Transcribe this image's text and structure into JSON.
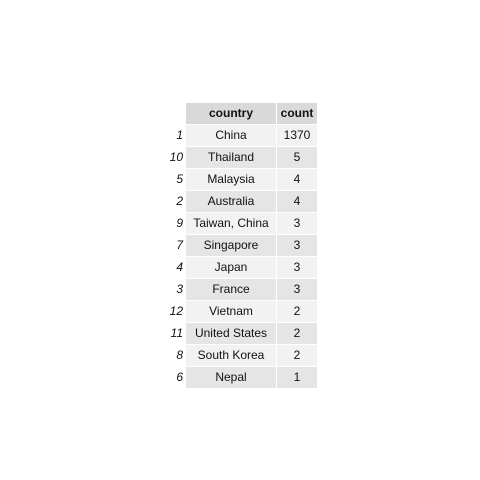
{
  "table": {
    "columns": [
      "country",
      "count"
    ],
    "rows": [
      {
        "index": "1",
        "country": "China",
        "count": "1370"
      },
      {
        "index": "10",
        "country": "Thailand",
        "count": "5"
      },
      {
        "index": "5",
        "country": "Malaysia",
        "count": "4"
      },
      {
        "index": "2",
        "country": "Australia",
        "count": "4"
      },
      {
        "index": "9",
        "country": "Taiwan, China",
        "count": "3"
      },
      {
        "index": "7",
        "country": "Singapore",
        "count": "3"
      },
      {
        "index": "4",
        "country": "Japan",
        "count": "3"
      },
      {
        "index": "3",
        "country": "France",
        "count": "3"
      },
      {
        "index": "12",
        "country": "Vietnam",
        "count": "2"
      },
      {
        "index": "11",
        "country": "United States",
        "count": "2"
      },
      {
        "index": "8",
        "country": "South Korea",
        "count": "2"
      },
      {
        "index": "6",
        "country": "Nepal",
        "count": "1"
      }
    ]
  }
}
